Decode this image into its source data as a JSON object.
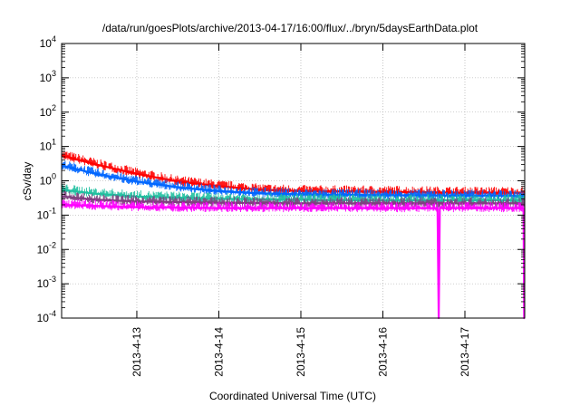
{
  "chart_data": {
    "type": "line",
    "title": "/data/run/goesPlots/archive/2013-04-17/16:00/flux/../bryn/5daysEarthData.plot",
    "xlabel": "Coordinated Universal Time (UTC)",
    "ylabel": "cSv/day",
    "xlim": [
      "2013-04-12 02:00",
      "2013-04-17 17:30"
    ],
    "ylim": [
      0.0001,
      10000
    ],
    "yscale": "log",
    "grid": true,
    "legend": "none",
    "x_ticks": [
      {
        "x": "2013-04-13 00:00",
        "label": "2013-4-13"
      },
      {
        "x": "2013-04-14 00:00",
        "label": "2013-4-14"
      },
      {
        "x": "2013-04-15 00:00",
        "label": "2013-4-15"
      },
      {
        "x": "2013-04-16 00:00",
        "label": "2013-4-16"
      },
      {
        "x": "2013-04-17 00:00",
        "label": "2013-4-17"
      }
    ],
    "y_ticks": [
      {
        "value": 0.0001,
        "base": "10",
        "exp": "-4"
      },
      {
        "value": 0.001,
        "base": "10",
        "exp": "-3"
      },
      {
        "value": 0.01,
        "base": "10",
        "exp": "-2"
      },
      {
        "value": 0.1,
        "base": "10",
        "exp": "-1"
      },
      {
        "value": 1,
        "base": "10",
        "exp": "0"
      },
      {
        "value": 10,
        "base": "10",
        "exp": "1"
      },
      {
        "value": 100,
        "base": "10",
        "exp": "2"
      },
      {
        "value": 1000,
        "base": "10",
        "exp": "3"
      },
      {
        "value": 10000,
        "base": "10",
        "exp": "4"
      }
    ],
    "series": [
      {
        "color": "#ff0000",
        "x": [
          "2013-04-12 02:00",
          "2013-04-12 12:00",
          "2013-04-13 00:00",
          "2013-04-13 12:00",
          "2013-04-14 00:00",
          "2013-04-14 12:00",
          "2013-04-15 00:00",
          "2013-04-16 00:00",
          "2013-04-17 00:00",
          "2013-04-17 17:30"
        ],
        "y": [
          5.5,
          3.0,
          1.6,
          0.95,
          0.7,
          0.55,
          0.5,
          0.48,
          0.45,
          0.45
        ]
      },
      {
        "color": "#0066ff",
        "x": [
          "2013-04-12 02:00",
          "2013-04-12 12:00",
          "2013-04-13 00:00",
          "2013-04-13 12:00",
          "2013-04-14 00:00",
          "2013-04-14 12:00",
          "2013-04-15 00:00",
          "2013-04-16 00:00",
          "2013-04-17 00:00",
          "2013-04-17 17:30"
        ],
        "y": [
          2.8,
          1.6,
          0.95,
          0.65,
          0.5,
          0.43,
          0.4,
          0.38,
          0.37,
          0.36
        ]
      },
      {
        "color": "#20c0a0",
        "x": [
          "2013-04-12 02:00",
          "2013-04-12 12:00",
          "2013-04-13 00:00",
          "2013-04-14 00:00",
          "2013-04-15 00:00",
          "2013-04-16 00:00",
          "2013-04-17 00:00",
          "2013-04-17 17:30"
        ],
        "y": [
          0.55,
          0.42,
          0.35,
          0.3,
          0.28,
          0.27,
          0.27,
          0.27
        ]
      },
      {
        "color": "#7f3f7f",
        "x": [
          "2013-04-12 02:00",
          "2013-04-12 12:00",
          "2013-04-13 00:00",
          "2013-04-14 00:00",
          "2013-04-15 00:00",
          "2013-04-16 00:00",
          "2013-04-17 00:00",
          "2013-04-17 17:30"
        ],
        "y": [
          0.35,
          0.28,
          0.25,
          0.23,
          0.22,
          0.22,
          0.22,
          0.22
        ]
      },
      {
        "color": "#ff00ff",
        "x": [
          "2013-04-12 02:00",
          "2013-04-13 00:00",
          "2013-04-14 00:00",
          "2013-04-15 00:00",
          "2013-04-16 00:00",
          "2013-04-16 16:00",
          "2013-04-16 16:20",
          "2013-04-16 16:40",
          "2013-04-17 00:00",
          "2013-04-17 17:10",
          "2013-04-17 17:20",
          "2013-04-17 17:30"
        ],
        "y": [
          0.2,
          0.17,
          0.16,
          0.16,
          0.16,
          0.16,
          0.0001,
          0.16,
          0.16,
          0.16,
          0.0001,
          0.0001
        ]
      }
    ]
  }
}
